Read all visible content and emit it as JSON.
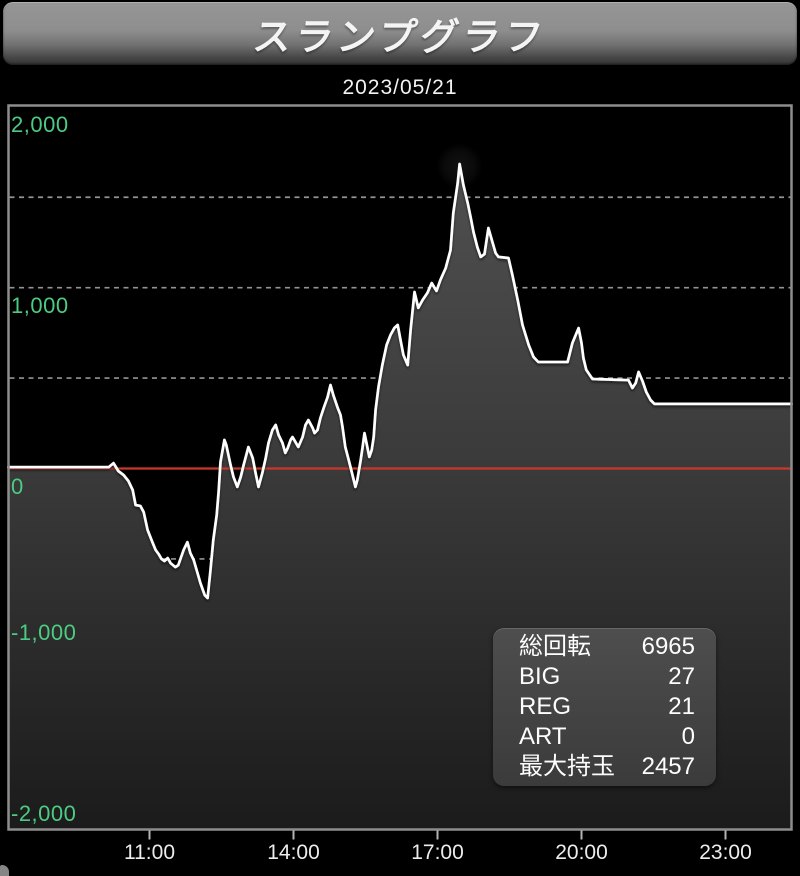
{
  "header": {
    "title": "スランプグラフ"
  },
  "date_label": "2023/05/21",
  "chart_data": {
    "type": "area",
    "title": "スランプグラフ",
    "date": "2023/05/21",
    "x_axis": {
      "unit": "time",
      "ticks": [
        {
          "label": "11:00",
          "hour": 11
        },
        {
          "label": "14:00",
          "hour": 14
        },
        {
          "label": "17:00",
          "hour": 17
        },
        {
          "label": "20:00",
          "hour": 20
        },
        {
          "label": "23:00",
          "hour": 23
        }
      ],
      "visible_range_hours": [
        8.1,
        24.4
      ]
    },
    "y_axis": {
      "ticks": [
        {
          "label": "2,000",
          "value": 2000
        },
        {
          "label": "1,000",
          "value": 1000
        },
        {
          "label": "0",
          "value": 0
        },
        {
          "label": "-1,000",
          "value": -1000
        },
        {
          "label": "-2,000",
          "value": -2000
        }
      ],
      "gridline_values": [
        1500,
        1000,
        500,
        -500,
        -1000,
        -1500
      ],
      "range": [
        -2000,
        2000
      ],
      "grid": true
    },
    "zero_line_value": 0,
    "colors": {
      "y_label_green": "#4ccc82",
      "zero_line_red": "#c9372c",
      "series_line": "#ffffff",
      "area_fill_top": "#545454",
      "area_fill_bottom": "#1b1b1b",
      "gridline": "#9c9c9c",
      "chart_border": "#8d8d8d"
    },
    "series": [
      {
        "points": [
          [
            8.06,
            8
          ],
          [
            10.15,
            8
          ],
          [
            10.25,
            30
          ],
          [
            10.35,
            -14
          ],
          [
            10.46,
            -36
          ],
          [
            10.56,
            -69
          ],
          [
            10.65,
            -119
          ],
          [
            10.71,
            -202
          ],
          [
            10.81,
            -207
          ],
          [
            10.88,
            -241
          ],
          [
            10.96,
            -340
          ],
          [
            11.06,
            -407
          ],
          [
            11.13,
            -451
          ],
          [
            11.19,
            -473
          ],
          [
            11.25,
            -500
          ],
          [
            11.31,
            -512
          ],
          [
            11.38,
            -495
          ],
          [
            11.44,
            -523
          ],
          [
            11.54,
            -545
          ],
          [
            11.6,
            -534
          ],
          [
            11.71,
            -451
          ],
          [
            11.79,
            -407
          ],
          [
            11.85,
            -467
          ],
          [
            11.92,
            -506
          ],
          [
            12.0,
            -578
          ],
          [
            12.06,
            -633
          ],
          [
            12.15,
            -700
          ],
          [
            12.21,
            -716
          ],
          [
            12.27,
            -561
          ],
          [
            12.33,
            -395
          ],
          [
            12.4,
            -257
          ],
          [
            12.44,
            -130
          ],
          [
            12.48,
            36
          ],
          [
            12.56,
            158
          ],
          [
            12.6,
            130
          ],
          [
            12.69,
            19
          ],
          [
            12.75,
            -47
          ],
          [
            12.83,
            -102
          ],
          [
            12.9,
            -47
          ],
          [
            12.96,
            19
          ],
          [
            13.06,
            119
          ],
          [
            13.15,
            58
          ],
          [
            13.21,
            -25
          ],
          [
            13.27,
            -102
          ],
          [
            13.35,
            -25
          ],
          [
            13.42,
            58
          ],
          [
            13.48,
            141
          ],
          [
            13.56,
            213
          ],
          [
            13.63,
            241
          ],
          [
            13.69,
            185
          ],
          [
            13.77,
            141
          ],
          [
            13.83,
            86
          ],
          [
            13.88,
            113
          ],
          [
            13.94,
            158
          ],
          [
            13.98,
            174
          ],
          [
            14.04,
            147
          ],
          [
            14.1,
            119
          ],
          [
            14.19,
            174
          ],
          [
            14.25,
            241
          ],
          [
            14.31,
            268
          ],
          [
            14.4,
            224
          ],
          [
            14.44,
            196
          ],
          [
            14.5,
            213
          ],
          [
            14.56,
            279
          ],
          [
            14.63,
            335
          ],
          [
            14.71,
            395
          ],
          [
            14.77,
            462
          ],
          [
            14.83,
            407
          ],
          [
            14.92,
            335
          ],
          [
            14.98,
            296
          ],
          [
            15.02,
            230
          ],
          [
            15.08,
            119
          ],
          [
            15.15,
            47
          ],
          [
            15.23,
            -36
          ],
          [
            15.29,
            -102
          ],
          [
            15.33,
            -64
          ],
          [
            15.4,
            47
          ],
          [
            15.44,
            119
          ],
          [
            15.48,
            196
          ],
          [
            15.52,
            141
          ],
          [
            15.58,
            64
          ],
          [
            15.63,
            102
          ],
          [
            15.67,
            174
          ],
          [
            15.71,
            324
          ],
          [
            15.77,
            451
          ],
          [
            15.85,
            572
          ],
          [
            15.94,
            683
          ],
          [
            16.02,
            738
          ],
          [
            16.1,
            777
          ],
          [
            16.17,
            794
          ],
          [
            16.23,
            711
          ],
          [
            16.29,
            628
          ],
          [
            16.38,
            572
          ],
          [
            16.44,
            766
          ],
          [
            16.52,
            976
          ],
          [
            16.6,
            888
          ],
          [
            16.69,
            932
          ],
          [
            16.79,
            971
          ],
          [
            16.88,
            1026
          ],
          [
            16.98,
            982
          ],
          [
            17.06,
            1043
          ],
          [
            17.17,
            1109
          ],
          [
            17.27,
            1208
          ],
          [
            17.33,
            1413
          ],
          [
            17.42,
            1579
          ],
          [
            17.46,
            1684
          ],
          [
            17.54,
            1568
          ],
          [
            17.63,
            1469
          ],
          [
            17.69,
            1391
          ],
          [
            17.75,
            1308
          ],
          [
            17.83,
            1225
          ],
          [
            17.9,
            1170
          ],
          [
            17.98,
            1186
          ],
          [
            18.06,
            1330
          ],
          [
            18.15,
            1247
          ],
          [
            18.21,
            1192
          ],
          [
            18.27,
            1170
          ],
          [
            18.48,
            1164
          ],
          [
            18.56,
            1070
          ],
          [
            18.67,
            932
          ],
          [
            18.77,
            794
          ],
          [
            18.9,
            683
          ],
          [
            19.0,
            617
          ],
          [
            19.1,
            589
          ],
          [
            19.71,
            589
          ],
          [
            19.81,
            694
          ],
          [
            19.94,
            777
          ],
          [
            20.0,
            694
          ],
          [
            20.04,
            611
          ],
          [
            20.1,
            545
          ],
          [
            20.23,
            495
          ],
          [
            20.98,
            489
          ],
          [
            21.06,
            445
          ],
          [
            21.13,
            473
          ],
          [
            21.19,
            534
          ],
          [
            21.27,
            484
          ],
          [
            21.35,
            423
          ],
          [
            21.44,
            379
          ],
          [
            21.52,
            357
          ],
          [
            24.4,
            357
          ]
        ]
      }
    ]
  },
  "stats_panel": {
    "rows": [
      {
        "label": "総回転",
        "value": "6965"
      },
      {
        "label": "BIG",
        "value": "27"
      },
      {
        "label": "REG",
        "value": "21"
      },
      {
        "label": "ART",
        "value": "0"
      },
      {
        "label": "最大持玉",
        "value": "2457"
      }
    ]
  }
}
